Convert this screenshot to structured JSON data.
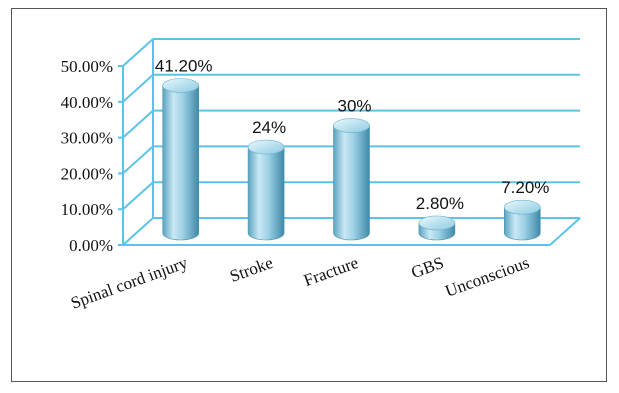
{
  "chart_data": {
    "type": "bar",
    "categories": [
      "Spinal cord injury",
      "Stroke",
      "Fracture",
      "GBS",
      "Unconscious"
    ],
    "values": [
      41.2,
      24,
      30,
      2.8,
      7.2
    ],
    "data_labels": [
      "41.20%",
      "24%",
      "30%",
      "2.80%",
      "7.20%"
    ],
    "ylim": [
      0,
      50
    ],
    "yticks": [
      "0.00%",
      "10.00%",
      "20.00%",
      "30.00%",
      "40.00%",
      "50.00%"
    ],
    "grid": true,
    "style": "3d-cylinder",
    "colors": {
      "bar": "#8ec9df",
      "bar_dark": "#4f9ab8",
      "bar_light": "#e6f5fb",
      "grid": "#5cc3e8",
      "frame": "#555555"
    }
  }
}
